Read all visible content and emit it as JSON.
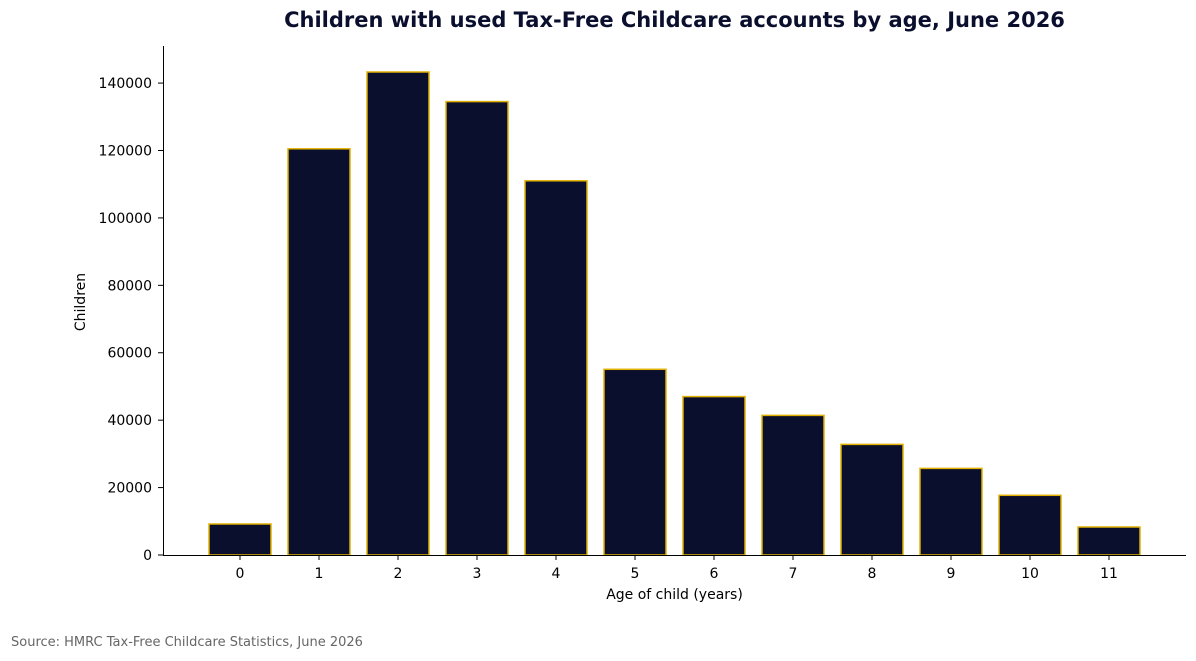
{
  "chart_data": {
    "type": "bar",
    "title": "Children with used Tax-Free Childcare accounts by age, June 2026",
    "xlabel": "Age of child (years)",
    "ylabel": "Children",
    "categories": [
      "0",
      "1",
      "2",
      "3",
      "4",
      "5",
      "6",
      "7",
      "8",
      "9",
      "10",
      "11"
    ],
    "values": [
      9200,
      120500,
      143300,
      134500,
      111000,
      55100,
      47000,
      41400,
      32800,
      25700,
      17700,
      8300
    ],
    "ylim": [
      0,
      151000
    ],
    "yticks": [
      0,
      20000,
      40000,
      60000,
      80000,
      100000,
      120000,
      140000
    ],
    "ytick_labels": [
      "0",
      "20000",
      "40000",
      "60000",
      "80000",
      "100000",
      "120000",
      "140000"
    ],
    "grid": false,
    "bar_color": "#0b0f2e",
    "bar_edge_color": "#e0b000"
  },
  "source": "Source: HMRC Tax-Free Childcare Statistics, June 2026"
}
